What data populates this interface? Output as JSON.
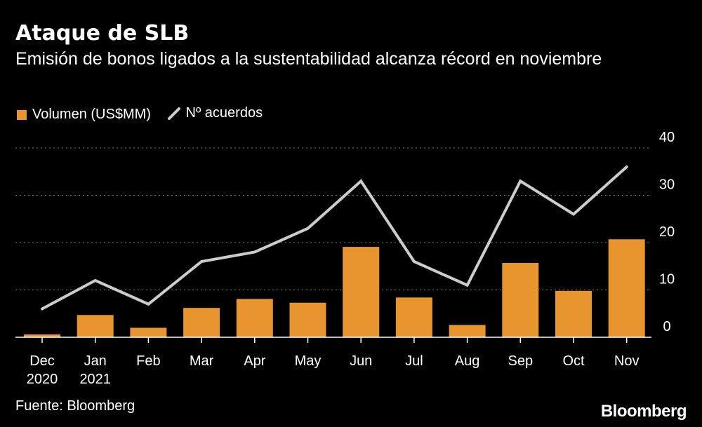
{
  "header": {
    "title": "Ataque de SLB",
    "subtitle": "Emisión de bonos ligados a la sustentabilidad alcanza récord en noviembre"
  },
  "legend": {
    "bars_label": "Volumen (US$MM)",
    "line_label": "Nº acuerdos"
  },
  "colors": {
    "bar": "#e8952f",
    "line": "#cccccc",
    "grid": "#777777"
  },
  "footer": {
    "source": "Fuente: Bloomberg",
    "brand": "Bloomberg"
  },
  "chart_data": {
    "type": "bar",
    "categories": [
      [
        "Dec",
        "2020"
      ],
      [
        "Jan",
        "2021"
      ],
      [
        "Feb"
      ],
      [
        "Mar"
      ],
      [
        "Apr"
      ],
      [
        "May"
      ],
      [
        "Jun"
      ],
      [
        "Jul"
      ],
      [
        "Aug"
      ],
      [
        "Sep"
      ],
      [
        "Oct"
      ],
      [
        "Nov"
      ]
    ],
    "series": [
      {
        "name": "Volumen (US$MM)",
        "kind": "bar",
        "values": [
          0.6,
          4.7,
          2.0,
          6.2,
          8.1,
          7.3,
          19.1,
          8.4,
          2.6,
          15.7,
          9.8,
          20.7
        ]
      },
      {
        "name": "Nº acuerdos",
        "kind": "line",
        "values": [
          6,
          12,
          7,
          16,
          18,
          23,
          33,
          16,
          11,
          33,
          26,
          36
        ]
      }
    ],
    "yaxis": {
      "position": "right",
      "ticks": [
        0,
        10,
        20,
        30,
        40
      ],
      "ylim": [
        0,
        40
      ]
    },
    "grid": true,
    "legend_position": "top-left"
  }
}
